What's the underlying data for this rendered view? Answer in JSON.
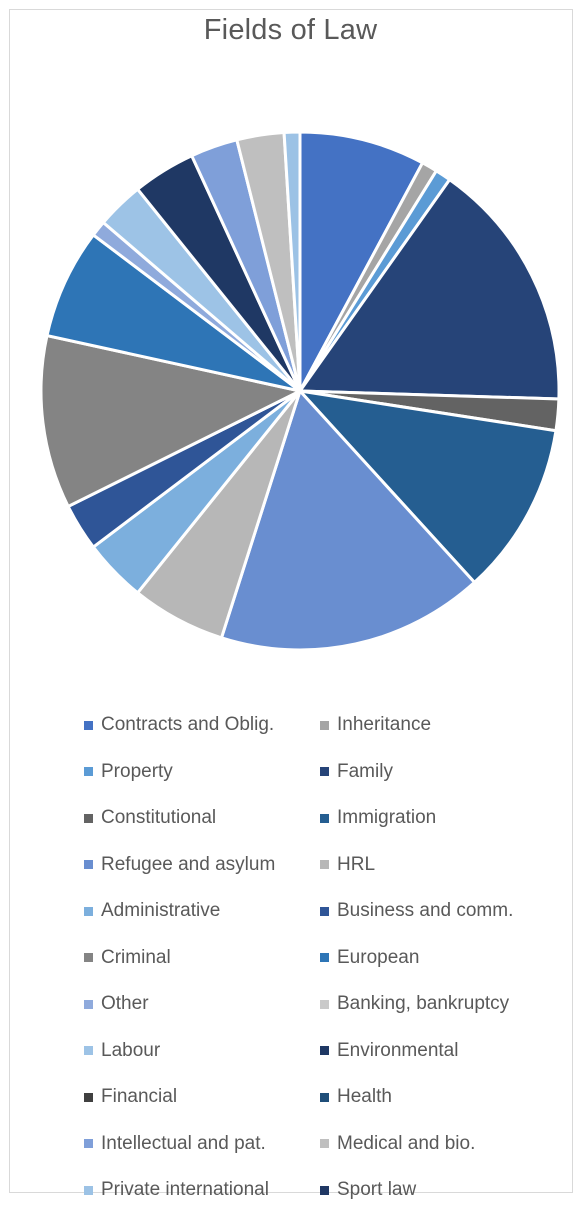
{
  "chart_data": {
    "type": "pie",
    "title": "Fields of Law",
    "legend_position": "bottom",
    "slices": [
      {
        "label": "Contracts and Oblig.",
        "value": 8,
        "color": "#4472c4"
      },
      {
        "label": "Inheritance",
        "value": 1,
        "color": "#a5a5a5"
      },
      {
        "label": "Property",
        "value": 1,
        "color": "#5b9bd5"
      },
      {
        "label": "Family",
        "value": 16,
        "color": "#264478"
      },
      {
        "label": "Constitutional",
        "value": 2,
        "color": "#636363"
      },
      {
        "label": "Immigration",
        "value": 11,
        "color": "#255e91"
      },
      {
        "label": "Refugee and asylum",
        "value": 17,
        "color": "#698ed0"
      },
      {
        "label": "HRL",
        "value": 6,
        "color": "#b7b7b7"
      },
      {
        "label": "Administrative",
        "value": 4,
        "color": "#7cafdd"
      },
      {
        "label": "Business and comm.",
        "value": 3,
        "color": "#2f5597"
      },
      {
        "label": "Criminal",
        "value": 11,
        "color": "#848484"
      },
      {
        "label": "European",
        "value": 7,
        "color": "#2e75b6"
      },
      {
        "label": "Other",
        "value": 1,
        "color": "#8faadc"
      },
      {
        "label": "Banking, bankruptcy",
        "value": 0,
        "color": "#c9c9c9"
      },
      {
        "label": "Labour",
        "value": 3,
        "color": "#9dc3e6"
      },
      {
        "label": "Environmental",
        "value": 4,
        "color": "#1f3864"
      },
      {
        "label": "Financial",
        "value": 0,
        "color": "#404040"
      },
      {
        "label": "Health",
        "value": 0,
        "color": "#1f4e79"
      },
      {
        "label": "Intellectual and pat.",
        "value": 3,
        "color": "#7f9fd9"
      },
      {
        "label": "Medical and bio.",
        "value": 3,
        "color": "#bfbfbf"
      },
      {
        "label": "Private international",
        "value": 1,
        "color": "#9cc2e5"
      },
      {
        "label": "Sport law",
        "value": 0,
        "color": "#203864"
      }
    ]
  }
}
